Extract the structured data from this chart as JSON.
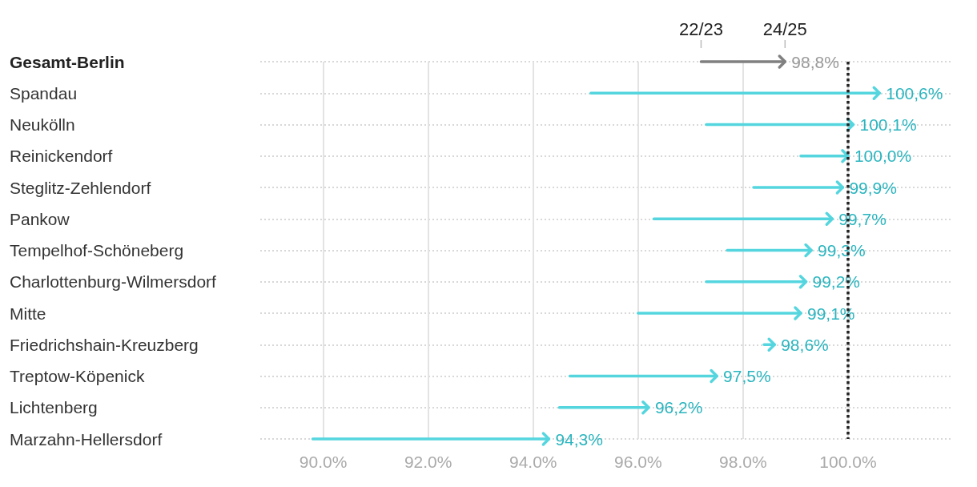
{
  "chart_data": {
    "type": "bar",
    "orientation": "horizontal",
    "categories": [
      "Gesamt-Berlin",
      "Spandau",
      "Neukölln",
      "Reinickendorf",
      "Steglitz-Zehlendorf",
      "Pankow",
      "Tempelhof-Schöneberg",
      "Charlottenburg-Wilmersdorf",
      "Mitte",
      "Friedrichshain-Kreuzberg",
      "Treptow-Köpenick",
      "Lichtenberg",
      "Marzahn-Hellersdorf"
    ],
    "base": [
      97.2,
      95.1,
      97.3,
      99.1,
      98.2,
      96.3,
      97.7,
      97.3,
      96.0,
      98.4,
      94.7,
      94.5,
      89.8
    ],
    "values": [
      1.6,
      5.5,
      2.8,
      0.9,
      1.7,
      3.4,
      1.6,
      1.9,
      3.1,
      0.2,
      2.8,
      1.7,
      4.5
    ],
    "value_labels": [
      "98,8%",
      "100,6%",
      "100,1%",
      "100,0%",
      "99,9%",
      "99,7%",
      "99,3%",
      "99,2%",
      "99,1%",
      "98,6%",
      "97,5%",
      "96,2%",
      "94,3%"
    ],
    "colors": [
      "#808080",
      "#55d6df",
      "#55d6df",
      "#55d6df",
      "#55d6df",
      "#55d6df",
      "#55d6df",
      "#55d6df",
      "#55d6df",
      "#55d6df",
      "#55d6df",
      "#55d6df",
      "#55d6df"
    ],
    "xlim": [
      88.8,
      102
    ],
    "xticks": [
      {
        "value": 90,
        "label": "90.0%"
      },
      {
        "value": 92,
        "label": "92.0%"
      },
      {
        "value": 94,
        "label": "94.0%"
      },
      {
        "value": 96,
        "label": "96.0%"
      },
      {
        "value": 98,
        "label": "98.0%"
      },
      {
        "value": 100,
        "label": "100.0%"
      }
    ],
    "ref_lines": [
      {
        "axis": "x",
        "value": 100,
        "color": "#222222",
        "line_style": "dotted"
      }
    ],
    "annotations": [
      {
        "text": "22/23",
        "x": 97.2,
        "y": "Gesamt-Berlin"
      },
      {
        "text": "24/25",
        "x": 98.8,
        "y": "Gesamt-Berlin"
      }
    ],
    "grid": true
  }
}
